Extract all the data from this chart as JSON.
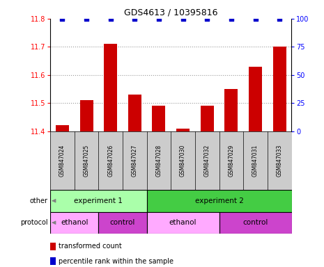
{
  "title": "GDS4613 / 10395816",
  "samples": [
    "GSM847024",
    "GSM847025",
    "GSM847026",
    "GSM847027",
    "GSM847028",
    "GSM847030",
    "GSM847032",
    "GSM847029",
    "GSM847031",
    "GSM847033"
  ],
  "bar_values": [
    11.42,
    11.51,
    11.71,
    11.53,
    11.49,
    11.41,
    11.49,
    11.55,
    11.63,
    11.7
  ],
  "percentile_values": [
    100,
    100,
    100,
    100,
    100,
    100,
    100,
    100,
    100,
    100
  ],
  "ylim_left": [
    11.4,
    11.8
  ],
  "ylim_right": [
    0,
    100
  ],
  "yticks_left": [
    11.4,
    11.5,
    11.6,
    11.7,
    11.8
  ],
  "yticks_right": [
    0,
    25,
    50,
    75,
    100
  ],
  "bar_color": "#cc0000",
  "dot_color": "#0000cc",
  "grid_color": "#999999",
  "experiment1_color": "#aaffaa",
  "experiment2_color": "#44cc44",
  "ethanol_color": "#ffaaff",
  "control_color": "#cc44cc",
  "sample_bg_color": "#cccccc",
  "other_row": [
    {
      "label": "experiment 1",
      "start": 0,
      "end": 4
    },
    {
      "label": "experiment 2",
      "start": 4,
      "end": 10
    }
  ],
  "protocol_row": [
    {
      "label": "ethanol",
      "start": 0,
      "end": 2,
      "color": "#ffaaff"
    },
    {
      "label": "control",
      "start": 2,
      "end": 4,
      "color": "#cc44cc"
    },
    {
      "label": "ethanol",
      "start": 4,
      "end": 7,
      "color": "#ffaaff"
    },
    {
      "label": "control",
      "start": 7,
      "end": 10,
      "color": "#cc44cc"
    }
  ],
  "legend_items": [
    {
      "label": "transformed count",
      "color": "#cc0000"
    },
    {
      "label": "percentile rank within the sample",
      "color": "#0000cc"
    }
  ],
  "left_labels": [
    {
      "label": "other",
      "row": 0
    },
    {
      "label": "protocol",
      "row": 1
    }
  ]
}
